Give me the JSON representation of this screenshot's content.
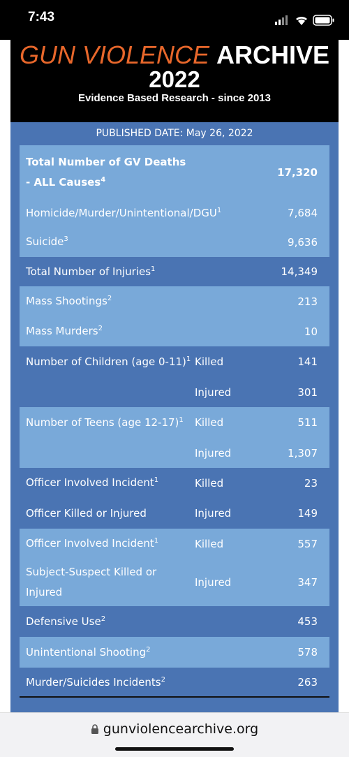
{
  "status_bar": {
    "time": "7:43"
  },
  "header": {
    "title_orange": "GUN VIOLENCE",
    "title_white": "ARCHIVE",
    "year": "2022",
    "subtitle": "Evidence Based Research - since 2013"
  },
  "table": {
    "published": "PUBLISHED DATE: May 26, 2022",
    "rows": [
      {
        "label": "Total Number of GV Deaths - ALL Causes",
        "sup": "4",
        "value": "17,320"
      },
      {
        "label": "Homicide/Murder/Unintentional/DGU",
        "sup": "1",
        "value": "7,684"
      },
      {
        "label": "Suicide",
        "sup": "3",
        "value": "9,636"
      },
      {
        "label": "Total Number of Injuries",
        "sup": "1",
        "value": "14,349"
      },
      {
        "label": "Mass Shootings",
        "sup": "2",
        "value": "213"
      },
      {
        "label": "Mass Murders",
        "sup": "2",
        "value": "10"
      },
      {
        "label": "Number of Children (age 0-11)",
        "sup": "1",
        "sub": "Killed",
        "value": "141"
      },
      {
        "sub": "Injured",
        "value": "301"
      },
      {
        "label": "Number of Teens (age 12-17)",
        "sup": "1",
        "sub": "Killed",
        "value": "511"
      },
      {
        "sub": "Injured",
        "value": "1,307"
      },
      {
        "label": "Officer Involved Incident",
        "sup": "1",
        "sub": "Killed",
        "value": "23"
      },
      {
        "label": "Officer Killed or Injured",
        "sub": "Injured",
        "value": "149"
      },
      {
        "label": "Officer Involved Incident",
        "sup": "1",
        "sub": "Killed",
        "value": "557"
      },
      {
        "label": "Subject-Suspect Killed or Injured",
        "sub": "Injured",
        "value": "347"
      },
      {
        "label": "Defensive Use",
        "sup": "2",
        "value": "453"
      },
      {
        "label": "Unintentional Shooting",
        "sup": "2",
        "value": "578"
      },
      {
        "label": "Murder/Suicides Incidents",
        "sup": "2",
        "value": "263"
      }
    ]
  },
  "footer": {
    "url": "gunviolencearchive.org"
  }
}
